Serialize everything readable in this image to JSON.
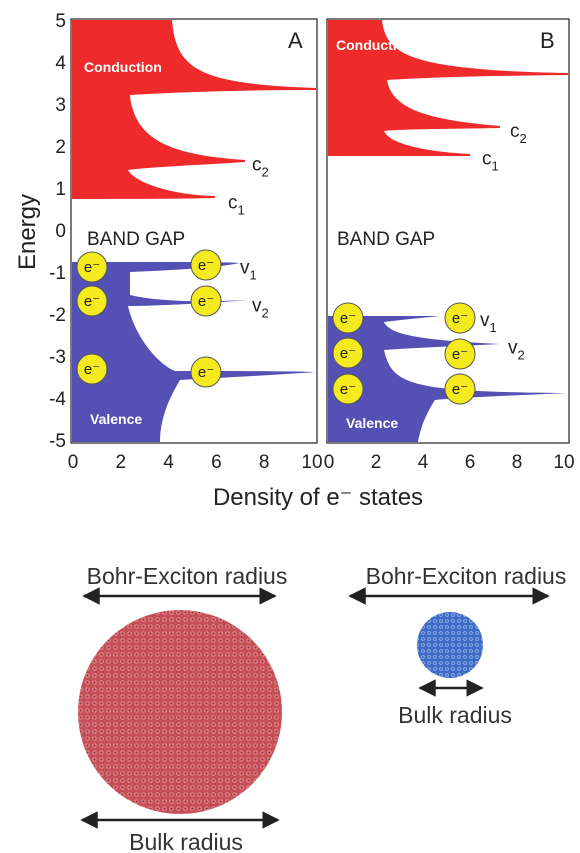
{
  "axes": {
    "y_title": "Energy",
    "x_title": "Density of e⁻ states",
    "y_ticks": [
      "5",
      "4",
      "3",
      "2",
      "1",
      "0",
      "-1",
      "-2",
      "-3",
      "-4",
      "-5"
    ],
    "x_ticks": [
      "0",
      "2",
      "4",
      "6",
      "8",
      "10"
    ]
  },
  "panels": [
    {
      "letter": "A",
      "conduction_label": "Conduction",
      "valence_label": "Valence",
      "gap_label": "BAND GAP",
      "c_states": [
        {
          "letter": "c",
          "sub": "1",
          "energy": 0.8
        },
        {
          "letter": "c",
          "sub": "2",
          "energy": 1.7
        }
      ],
      "v_states": [
        {
          "letter": "v",
          "sub": "1",
          "energy": -0.8
        },
        {
          "letter": "v",
          "sub": "2",
          "energy": -1.7
        }
      ],
      "conduction_edge": 0.8,
      "valence_edge": -0.75
    },
    {
      "letter": "B",
      "conduction_label": "Conduction",
      "valence_label": "Valence",
      "gap_label": "BAND GAP",
      "c_states": [
        {
          "letter": "c",
          "sub": "1",
          "energy": 1.85
        },
        {
          "letter": "c",
          "sub": "2",
          "energy": 2.5
        }
      ],
      "v_states": [
        {
          "letter": "v",
          "sub": "1",
          "energy": -2.05
        },
        {
          "letter": "v",
          "sub": "2",
          "energy": -2.7
        }
      ],
      "conduction_edge": 1.8,
      "valence_edge": -2.05
    }
  ],
  "electron_label": "e⁻",
  "colors": {
    "conduction": "#ee2a2a",
    "valence": "#5450b4",
    "electron": "#f4ea1e",
    "bulk_sphere": "#c8505a",
    "small_sphere": "#4a7ad0"
  },
  "bottom": {
    "left": {
      "exciton_label": "Bohr-Exciton radius",
      "bulk_label": "Bulk radius"
    },
    "right": {
      "exciton_label": "Bohr-Exciton radius",
      "bulk_label": "Bulk radius"
    }
  }
}
